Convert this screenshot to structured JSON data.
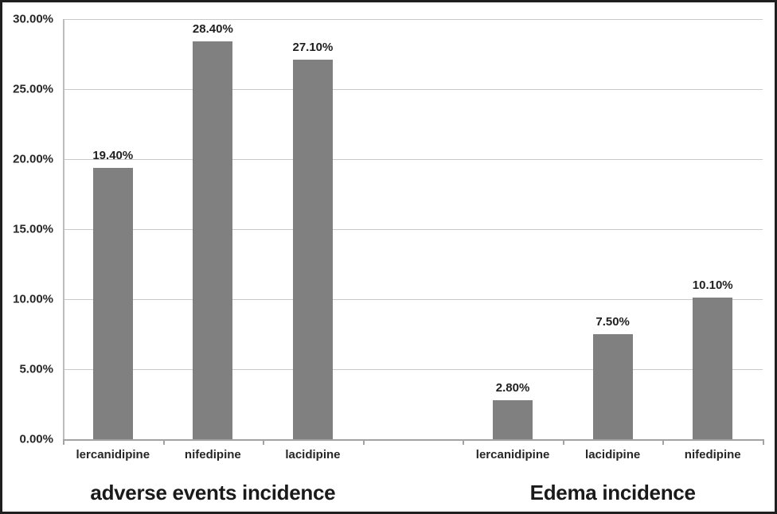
{
  "chart_data": {
    "type": "bar",
    "title": "",
    "xlabel": "",
    "ylabel": "",
    "ylim": [
      0,
      30
    ],
    "ytick_step": 5,
    "ytick_labels": [
      "0.00%",
      "5.00%",
      "10.00%",
      "15.00%",
      "20.00%",
      "25.00%",
      "30.00%"
    ],
    "grid": "horizontal",
    "bar_color": "#808080",
    "gap_slots_between_groups": 1,
    "groups": [
      {
        "title": "adverse events incidence",
        "categories": [
          "lercanidipine",
          "nifedipine",
          "lacidipine"
        ],
        "values": [
          19.4,
          28.4,
          27.1
        ],
        "value_labels": [
          "19.40%",
          "28.40%",
          "27.10%"
        ]
      },
      {
        "title": "Edema incidence",
        "categories": [
          "lercanidipine",
          "lacidipine",
          "nifedipine"
        ],
        "values": [
          2.8,
          7.5,
          10.1
        ],
        "value_labels": [
          "2.80%",
          "7.50%",
          "10.10%"
        ]
      }
    ]
  },
  "colors": {
    "bar": "#808080",
    "gridline": "#c9c9c9",
    "axis": "#a3a3a3",
    "text": "#262626",
    "frame_border": "#1f1f1f",
    "background": "#ffffff"
  }
}
